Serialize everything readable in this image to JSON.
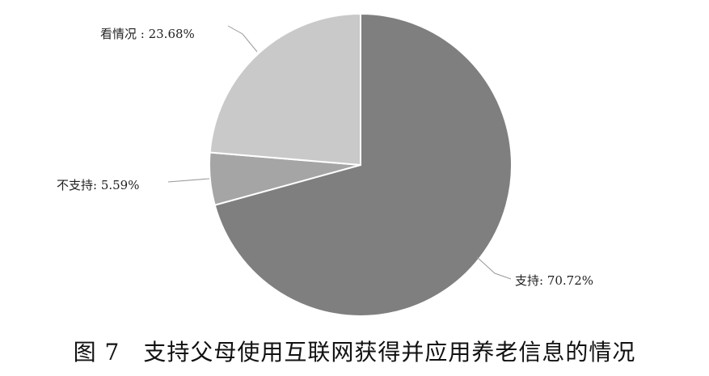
{
  "chart_data": {
    "type": "pie",
    "title": "图 7　支持父母使用互联网获得并应用养老信息的情况",
    "start": "top",
    "direction": "clockwise",
    "slices": [
      {
        "name": "支持",
        "value": 70.72,
        "label": "支持: 70.72%",
        "color": "#7f7f7f"
      },
      {
        "name": "不支持",
        "value": 5.59,
        "label": "不支持: 5.59%",
        "color": "#a5a5a5"
      },
      {
        "name": "看情况",
        "value": 23.68,
        "label": "看情况 : 23.68%",
        "color": "#c9c9c9"
      }
    ]
  }
}
